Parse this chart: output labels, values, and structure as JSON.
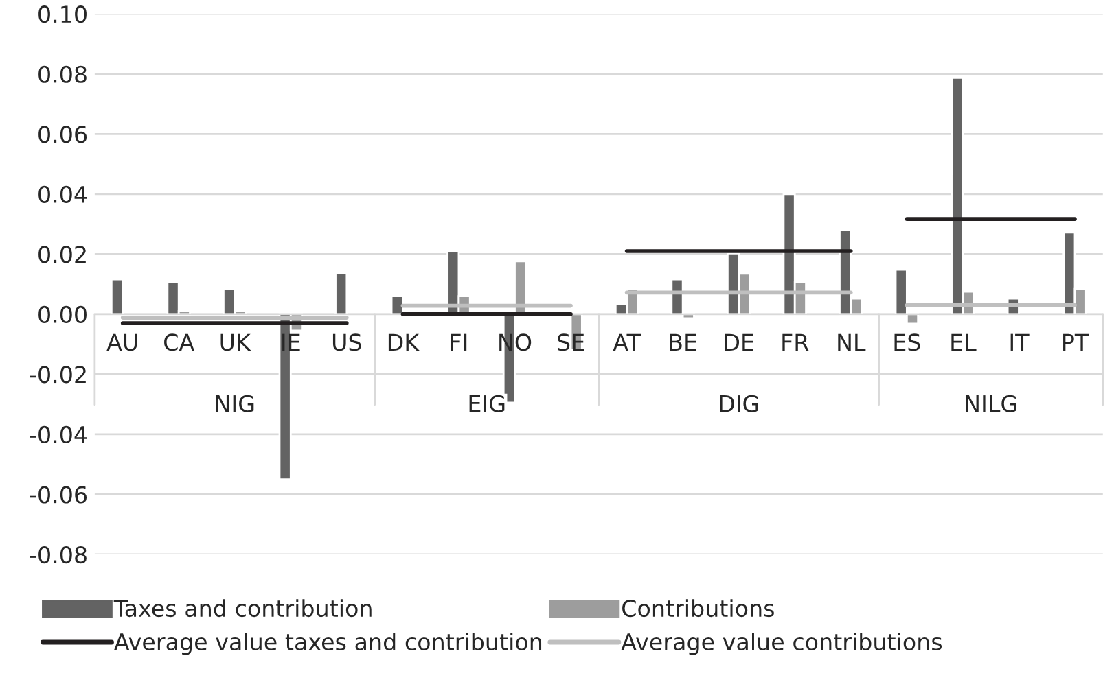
{
  "chart_data": {
    "type": "bar",
    "categories": [
      "AU",
      "CA",
      "UK",
      "IE",
      "US",
      "DK",
      "FI",
      "NO",
      "SE",
      "AT",
      "BE",
      "DE",
      "FR",
      "NL",
      "ES",
      "EL",
      "IT",
      "PT"
    ],
    "series": [
      {
        "name": "Taxes and contribution",
        "color": "#636363",
        "values": [
          0.0116,
          0.0107,
          0.0084,
          -0.055,
          0.0136,
          0.006,
          0.021,
          -0.0295,
          null,
          0.0034,
          0.0116,
          0.0202,
          0.04,
          0.028,
          0.0148,
          0.0787,
          0.0052,
          0.0272
        ]
      },
      {
        "name": "Contributions",
        "color": "#9d9d9d",
        "values": [
          null,
          0.001,
          0.001,
          -0.0055,
          null,
          null,
          0.006,
          0.0176,
          -0.012,
          0.0083,
          -0.0014,
          0.0135,
          0.0107,
          0.0052,
          -0.0032,
          0.0075,
          null,
          0.0084
        ]
      },
      {
        "name": "Average value taxes and contribution",
        "type": "line",
        "color": "#231f20",
        "values": [
          -0.003,
          -0.003,
          -0.003,
          -0.003,
          -0.003,
          null,
          null,
          null,
          null,
          null,
          null,
          null,
          null,
          null,
          null,
          null,
          null,
          null
        ]
      },
      {
        "type": "line",
        "color": "#231f20",
        "values": [
          null,
          null,
          null,
          null,
          null,
          0.0,
          0.0,
          0.0,
          0.0,
          null,
          null,
          null,
          null,
          null,
          null,
          null,
          null,
          null
        ]
      },
      {
        "type": "line",
        "color": "#231f20",
        "values": [
          null,
          null,
          null,
          null,
          null,
          null,
          null,
          null,
          null,
          0.021,
          0.021,
          0.021,
          0.021,
          0.021,
          null,
          null,
          null,
          null
        ]
      },
      {
        "type": "line",
        "color": "#231f20",
        "values": [
          null,
          null,
          null,
          null,
          null,
          null,
          null,
          null,
          null,
          null,
          null,
          null,
          null,
          null,
          0.0317,
          0.0317,
          0.0317,
          0.0317
        ]
      },
      {
        "name": "Average value contributions",
        "type": "line",
        "color": "#bfbfbf",
        "values": [
          -0.0012,
          -0.0012,
          -0.0012,
          -0.0012,
          -0.0012,
          null,
          null,
          null,
          null,
          null,
          null,
          null,
          null,
          null,
          null,
          null,
          null,
          null
        ]
      },
      {
        "type": "line",
        "color": "#bfbfbf",
        "values": [
          null,
          null,
          null,
          null,
          null,
          0.0028,
          0.0028,
          0.0028,
          0.0028,
          null,
          null,
          null,
          null,
          null,
          null,
          null,
          null,
          null
        ]
      },
      {
        "type": "line",
        "color": "#bfbfbf",
        "values": [
          null,
          null,
          null,
          null,
          null,
          null,
          null,
          null,
          null,
          0.0072,
          0.0072,
          0.0072,
          0.0072,
          0.0072,
          null,
          null,
          null,
          null
        ]
      },
      {
        "type": "line",
        "color": "#bfbfbf",
        "values": [
          null,
          null,
          null,
          null,
          null,
          null,
          null,
          null,
          null,
          null,
          null,
          null,
          null,
          null,
          0.003,
          0.003,
          0.003,
          0.003
        ]
      }
    ],
    "annotations": [
      "NIG",
      "EIG",
      "DIG",
      "NILG"
    ],
    "ylim": [
      -0.08,
      0.1
    ],
    "yticks": [
      {
        "value": -0.08,
        "label": "-0.08"
      },
      {
        "value": -0.06,
        "label": "-0.06"
      },
      {
        "value": -0.04,
        "label": "-0.04"
      },
      {
        "value": -0.02,
        "label": "-0.02"
      },
      {
        "value": 0,
        "label": "0.00"
      },
      {
        "value": 0.02,
        "label": "0.02"
      },
      {
        "value": 0.04,
        "label": "0.04"
      },
      {
        "value": 0.06,
        "label": "0.06"
      },
      {
        "value": 0.08,
        "label": "0.08"
      },
      {
        "value": 0.1,
        "label": "0.10"
      }
    ],
    "grid": "y",
    "legend": "bottom",
    "line_style": "solid",
    "marker": "none"
  }
}
